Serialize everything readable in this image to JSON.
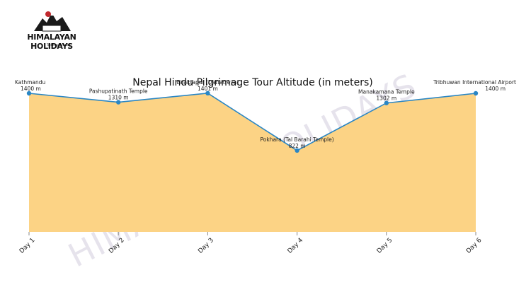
{
  "brand": {
    "name": "HIMALAYAN HOLIDAYS",
    "sub": "Trekking Pvt. Ltd."
  },
  "watermark": "HIMALAYAN HOLIDAYS",
  "colors": {
    "fill": "#fcd385",
    "line": "#2a86c4",
    "point": "#2a86c4"
  },
  "chart_data": {
    "type": "area",
    "title": "Nepal Hindu Pilgrimage Tour Altitude (in meters)",
    "categories": [
      "Day 1",
      "Day 2",
      "Day 3",
      "Day 4",
      "Day 5",
      "Day 6"
    ],
    "values": [
      1400,
      1310,
      1401,
      822,
      1302,
      1400
    ],
    "point_labels": [
      "Kathmandu",
      "Pashupatinath Temple",
      "Bhaktapur (Dattatreya)",
      "Pokhara (Tal Barahi Temple)",
      "Manakamana Temple",
      "Tribhuwan International Airport"
    ],
    "value_labels": [
      "1400 m",
      "1310 m",
      "1401 m",
      "822 m",
      "1302 m",
      "1400 m"
    ],
    "ylim": [
      0,
      1500
    ],
    "grid": false,
    "xlabel": "",
    "ylabel": ""
  }
}
